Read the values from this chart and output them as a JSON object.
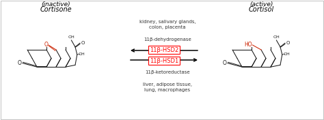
{
  "background_color": "#ffffff",
  "border_color": "#aaaaaa",
  "fig_width": 4.74,
  "fig_height": 1.76,
  "dpi": 100,
  "cortisone_label": "Cortisone",
  "cortisone_sublabel": "(inactive)",
  "cortisol_label": "Cortisol",
  "cortisol_sublabel": "(active)",
  "top_text": "liver, adipose tissue,\nlung, macrophages",
  "enzyme1_label": "11β-ketoreductase",
  "hsd1_label": "11β-HSD1",
  "hsd2_label": "11β-HSD2",
  "enzyme2_label": "11β-dehydrogenase",
  "bottom_text": "kidney, salivary glands,\ncolon, placenta",
  "struct_color": "#1a1a1a",
  "red_color": "#cc2200",
  "text_color": "#333333",
  "small_fs": 5.0,
  "name_fs": 7.0,
  "hsd_fs": 6.0
}
